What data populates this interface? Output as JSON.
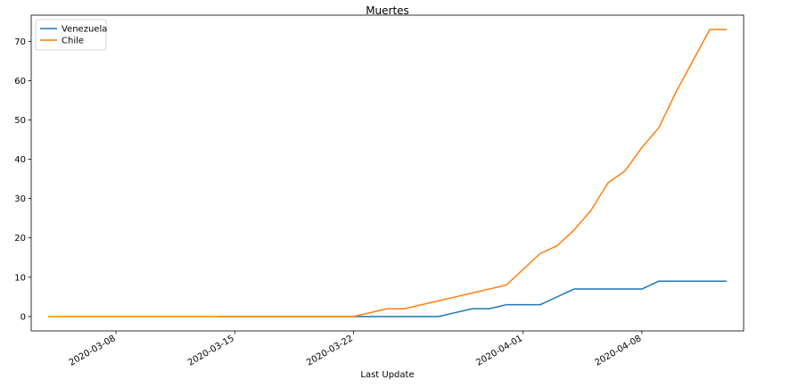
{
  "chart_data": {
    "type": "line",
    "title": "Muertes",
    "xlabel": "Last Update",
    "ylabel": "",
    "x_axis_type": "date",
    "xlim": [
      "2020-03-03",
      "2020-04-14"
    ],
    "ylim": [
      -3.65,
      76.65
    ],
    "x_ticks": [
      "2020-03-08",
      "2020-03-15",
      "2020-03-22",
      "2020-04-01",
      "2020-04-08"
    ],
    "y_ticks": [
      0,
      10,
      20,
      30,
      40,
      50,
      60,
      70
    ],
    "grid": false,
    "legend_position": "top-left",
    "x": [
      "2020-03-04",
      "2020-03-14",
      "2020-03-22",
      "2020-03-23",
      "2020-03-24",
      "2020-03-25",
      "2020-03-27",
      "2020-03-29",
      "2020-03-30",
      "2020-03-31",
      "2020-04-01",
      "2020-04-02",
      "2020-04-03",
      "2020-04-04",
      "2020-04-05",
      "2020-04-06",
      "2020-04-07",
      "2020-04-08",
      "2020-04-09",
      "2020-04-10",
      "2020-04-11",
      "2020-04-12",
      "2020-04-13"
    ],
    "series": [
      {
        "name": "Venezuela",
        "color": "#1f77b4",
        "values": [
          null,
          0,
          0,
          0,
          0,
          0,
          0,
          2,
          2,
          3,
          3,
          3,
          5,
          7,
          7,
          7,
          7,
          7,
          9,
          9,
          9,
          9,
          9
        ]
      },
      {
        "name": "Chile",
        "color": "#ff7f0e",
        "values": [
          0,
          0,
          0,
          1,
          2,
          2,
          4,
          6,
          7,
          8,
          12,
          16,
          18,
          22,
          27,
          34,
          37,
          43,
          48,
          57,
          65,
          73,
          73
        ]
      }
    ]
  }
}
